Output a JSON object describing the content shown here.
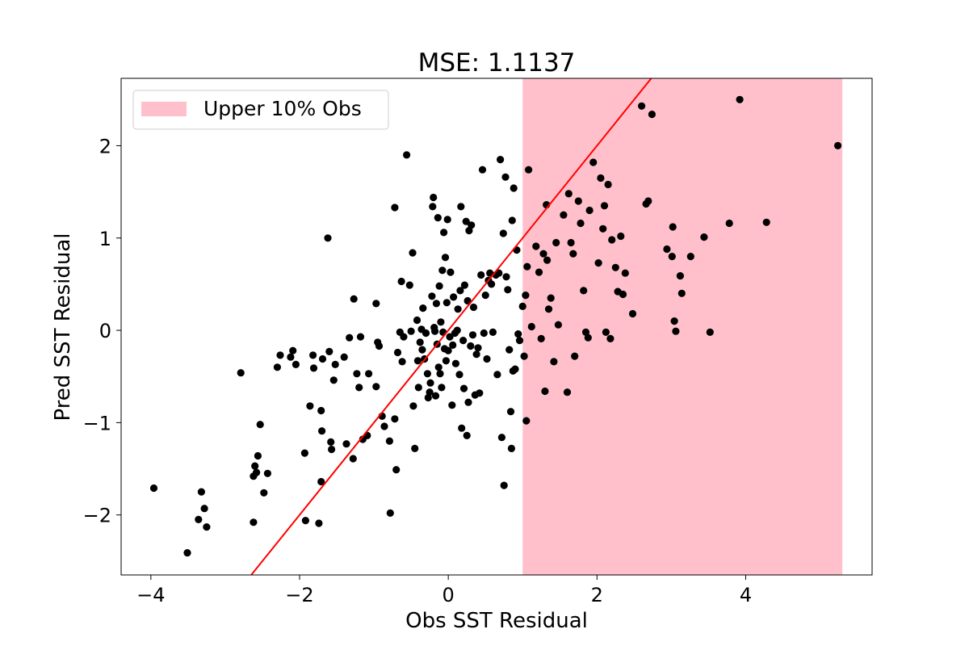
{
  "chart_data": {
    "type": "scatter",
    "title": "MSE: 1.1137",
    "xlabel": "Obs SST Residual",
    "ylabel": "Pred SST Residual",
    "xlim": [
      -4.4,
      5.7
    ],
    "ylim": [
      -2.65,
      2.73
    ],
    "xticks": [
      -4,
      -2,
      0,
      2,
      4
    ],
    "yticks": [
      -2,
      -1,
      0,
      1,
      2
    ],
    "xtick_labels": [
      "−4",
      "−2",
      "0",
      "2",
      "4"
    ],
    "ytick_labels": [
      "−2",
      "−1",
      "0",
      "1",
      "2"
    ],
    "grid": false,
    "legend": {
      "placement": "top-left",
      "entries": [
        {
          "label": "Upper 10% Obs",
          "color": "#ffc0cb"
        }
      ]
    },
    "shaded_region": {
      "label": "Upper 10% Obs",
      "x_start": 1.0,
      "x_end": 5.3,
      "color": "#ffc0cb"
    },
    "reference_line": {
      "slope": 1,
      "intercept": 0,
      "color": "#ff0000"
    },
    "point_color": "#000000",
    "points": [
      [
        -3.96,
        -1.71
      ],
      [
        -3.51,
        -2.41
      ],
      [
        -3.36,
        -2.05
      ],
      [
        -3.32,
        -1.75
      ],
      [
        -3.28,
        -1.93
      ],
      [
        -3.25,
        -2.13
      ],
      [
        -2.79,
        -0.46
      ],
      [
        -2.62,
        -2.08
      ],
      [
        -2.62,
        -1.58
      ],
      [
        -2.6,
        -1.47
      ],
      [
        -2.58,
        -1.54
      ],
      [
        -2.56,
        -1.36
      ],
      [
        -2.53,
        -1.02
      ],
      [
        -2.48,
        -1.76
      ],
      [
        -2.43,
        -1.55
      ],
      [
        -2.3,
        -0.4
      ],
      [
        -2.26,
        -0.27
      ],
      [
        -2.12,
        -0.29
      ],
      [
        -2.09,
        -0.22
      ],
      [
        -2.05,
        -0.37
      ],
      [
        -1.93,
        -1.33
      ],
      [
        -1.92,
        -2.06
      ],
      [
        -1.86,
        -0.82
      ],
      [
        -1.82,
        -0.27
      ],
      [
        -1.81,
        -0.41
      ],
      [
        -1.74,
        -2.09
      ],
      [
        -1.71,
        -1.64
      ],
      [
        -1.71,
        -0.87
      ],
      [
        -1.7,
        -1.09
      ],
      [
        -1.69,
        -0.31
      ],
      [
        -1.62,
        1.0
      ],
      [
        -1.6,
        -0.23
      ],
      [
        -1.58,
        -1.21
      ],
      [
        -1.57,
        -1.29
      ],
      [
        -1.54,
        -0.54
      ],
      [
        -1.52,
        -0.37
      ],
      [
        -1.4,
        -0.29
      ],
      [
        -1.37,
        -1.23
      ],
      [
        -1.33,
        -0.08
      ],
      [
        -1.28,
        -1.39
      ],
      [
        -1.27,
        0.34
      ],
      [
        -1.23,
        -0.47
      ],
      [
        -1.2,
        -0.62
      ],
      [
        -1.18,
        -0.07
      ],
      [
        -1.15,
        -1.18
      ],
      [
        -1.09,
        -1.14
      ],
      [
        -1.07,
        -0.47
      ],
      [
        -0.97,
        0.29
      ],
      [
        -0.97,
        -0.61
      ],
      [
        -0.95,
        -0.13
      ],
      [
        -0.93,
        -0.17
      ],
      [
        -0.89,
        -0.93
      ],
      [
        -0.86,
        -1.04
      ],
      [
        -0.79,
        -1.2
      ],
      [
        -0.78,
        -1.98
      ],
      [
        -0.72,
        -0.96
      ],
      [
        -0.72,
        1.33
      ],
      [
        -0.7,
        -1.51
      ],
      [
        -0.68,
        -0.24
      ],
      [
        -0.65,
        -0.02
      ],
      [
        -0.63,
        0.53
      ],
      [
        -0.62,
        -0.34
      ],
      [
        -0.6,
        -0.07
      ],
      [
        -0.56,
        1.9
      ],
      [
        -0.52,
        0.49
      ],
      [
        -0.5,
        -0.01
      ],
      [
        -0.48,
        0.84
      ],
      [
        -0.47,
        -0.82
      ],
      [
        -0.45,
        -1.28
      ],
      [
        -0.42,
        0.11
      ],
      [
        -0.41,
        -0.33
      ],
      [
        -0.4,
        -0.62
      ],
      [
        -0.38,
        -0.13
      ],
      [
        -0.36,
        0.01
      ],
      [
        -0.35,
        -0.21
      ],
      [
        -0.34,
        0.24
      ],
      [
        -0.32,
        -0.31
      ],
      [
        -0.3,
        -0.03
      ],
      [
        -0.28,
        -0.47
      ],
      [
        -0.27,
        -0.73
      ],
      [
        -0.25,
        -0.67
      ],
      [
        -0.24,
        -0.57
      ],
      [
        -0.22,
        0.37
      ],
      [
        -0.21,
        1.34
      ],
      [
        -0.2,
        1.44
      ],
      [
        -0.19,
        0.03
      ],
      [
        -0.18,
        -0.01
      ],
      [
        -0.17,
        -0.71
      ],
      [
        -0.16,
        0.29
      ],
      [
        -0.15,
        -0.15
      ],
      [
        -0.14,
        1.22
      ],
      [
        -0.13,
        -0.4
      ],
      [
        -0.12,
        0.48
      ],
      [
        -0.11,
        -0.47
      ],
      [
        -0.1,
        0.09
      ],
      [
        -0.09,
        -0.62
      ],
      [
        -0.08,
        0.65
      ],
      [
        -0.07,
        -0.02
      ],
      [
        -0.06,
        1.06
      ],
      [
        -0.05,
        -0.2
      ],
      [
        -0.04,
        0.79
      ],
      [
        -0.03,
        -0.33
      ],
      [
        -0.02,
        0.3
      ],
      [
        -0.01,
        1.2
      ],
      [
        0.0,
        -0.22
      ],
      [
        0.02,
        -0.07
      ],
      [
        0.03,
        0.63
      ],
      [
        0.05,
        -0.81
      ],
      [
        0.06,
        -0.16
      ],
      [
        0.07,
        0.36
      ],
      [
        0.09,
        -0.03
      ],
      [
        0.1,
        -0.36
      ],
      [
        0.12,
        0.0
      ],
      [
        0.13,
        0.23
      ],
      [
        0.15,
        -0.48
      ],
      [
        0.16,
        0.43
      ],
      [
        0.17,
        1.34
      ],
      [
        0.18,
        -1.06
      ],
      [
        0.2,
        -0.11
      ],
      [
        0.21,
        -0.63
      ],
      [
        0.22,
        0.49
      ],
      [
        0.24,
        1.18
      ],
      [
        0.25,
        -1.14
      ],
      [
        0.26,
        0.32
      ],
      [
        0.27,
        -0.78
      ],
      [
        0.28,
        1.08
      ],
      [
        0.3,
        -0.17
      ],
      [
        0.31,
        1.14
      ],
      [
        0.33,
        -0.05
      ],
      [
        0.34,
        0.25
      ],
      [
        0.36,
        -0.7
      ],
      [
        0.38,
        -0.26
      ],
      [
        0.4,
        -0.19
      ],
      [
        0.42,
        -0.68
      ],
      [
        0.44,
        0.6
      ],
      [
        0.46,
        1.74
      ],
      [
        0.48,
        -0.03
      ],
      [
        0.5,
        0.38
      ],
      [
        0.52,
        -0.31
      ],
      [
        0.54,
        0.54
      ],
      [
        0.56,
        0.62
      ],
      [
        0.58,
        0.5
      ],
      [
        0.6,
        -0.02
      ],
      [
        0.64,
        0.6
      ],
      [
        0.66,
        -0.48
      ],
      [
        0.68,
        0.62
      ],
      [
        0.7,
        1.85
      ],
      [
        0.72,
        -1.16
      ],
      [
        0.74,
        1.05
      ],
      [
        0.75,
        -1.68
      ],
      [
        0.77,
        1.66
      ],
      [
        0.78,
        0.58
      ],
      [
        0.8,
        0.44
      ],
      [
        0.82,
        -0.21
      ],
      [
        0.84,
        -0.88
      ],
      [
        0.85,
        -1.28
      ],
      [
        0.86,
        1.19
      ],
      [
        0.87,
        -0.44
      ],
      [
        0.88,
        1.54
      ],
      [
        0.9,
        -0.42
      ],
      [
        0.92,
        0.87
      ],
      [
        0.94,
        -0.04
      ],
      [
        0.96,
        -0.11
      ],
      [
        1.0,
        0.26
      ],
      [
        1.02,
        -0.28
      ],
      [
        1.04,
        0.38
      ],
      [
        1.05,
        -0.98
      ],
      [
        1.06,
        0.69
      ],
      [
        1.08,
        1.74
      ],
      [
        1.12,
        0.04
      ],
      [
        1.18,
        0.91
      ],
      [
        1.22,
        0.63
      ],
      [
        1.25,
        -0.09
      ],
      [
        1.28,
        0.83
      ],
      [
        1.3,
        -0.66
      ],
      [
        1.32,
        1.36
      ],
      [
        1.33,
        0.76
      ],
      [
        1.35,
        0.23
      ],
      [
        1.38,
        0.35
      ],
      [
        1.42,
        -0.34
      ],
      [
        1.45,
        0.95
      ],
      [
        1.48,
        0.06
      ],
      [
        1.55,
        1.25
      ],
      [
        1.6,
        -0.67
      ],
      [
        1.62,
        1.48
      ],
      [
        1.65,
        0.95
      ],
      [
        1.68,
        0.83
      ],
      [
        1.7,
        -0.28
      ],
      [
        1.75,
        1.4
      ],
      [
        1.78,
        1.16
      ],
      [
        1.82,
        0.43
      ],
      [
        1.85,
        -0.02
      ],
      [
        1.88,
        -0.08
      ],
      [
        1.9,
        1.3
      ],
      [
        1.95,
        1.82
      ],
      [
        2.02,
        0.73
      ],
      [
        2.05,
        1.65
      ],
      [
        2.08,
        1.1
      ],
      [
        2.1,
        1.35
      ],
      [
        2.12,
        -0.02
      ],
      [
        2.15,
        1.58
      ],
      [
        2.18,
        -0.09
      ],
      [
        2.2,
        0.98
      ],
      [
        2.25,
        0.68
      ],
      [
        2.28,
        0.42
      ],
      [
        2.32,
        1.02
      ],
      [
        2.35,
        0.39
      ],
      [
        2.38,
        0.62
      ],
      [
        2.48,
        0.18
      ],
      [
        2.6,
        2.43
      ],
      [
        2.66,
        1.37
      ],
      [
        2.69,
        1.4
      ],
      [
        2.74,
        2.34
      ],
      [
        2.94,
        0.88
      ],
      [
        3.01,
        0.8
      ],
      [
        3.02,
        1.12
      ],
      [
        3.04,
        0.1
      ],
      [
        3.06,
        -0.01
      ],
      [
        3.12,
        0.59
      ],
      [
        3.14,
        0.4
      ],
      [
        3.26,
        0.8
      ],
      [
        3.44,
        1.01
      ],
      [
        3.52,
        -0.02
      ],
      [
        3.78,
        1.16
      ],
      [
        3.92,
        2.5
      ],
      [
        4.28,
        1.17
      ],
      [
        5.24,
        2.0
      ]
    ]
  }
}
